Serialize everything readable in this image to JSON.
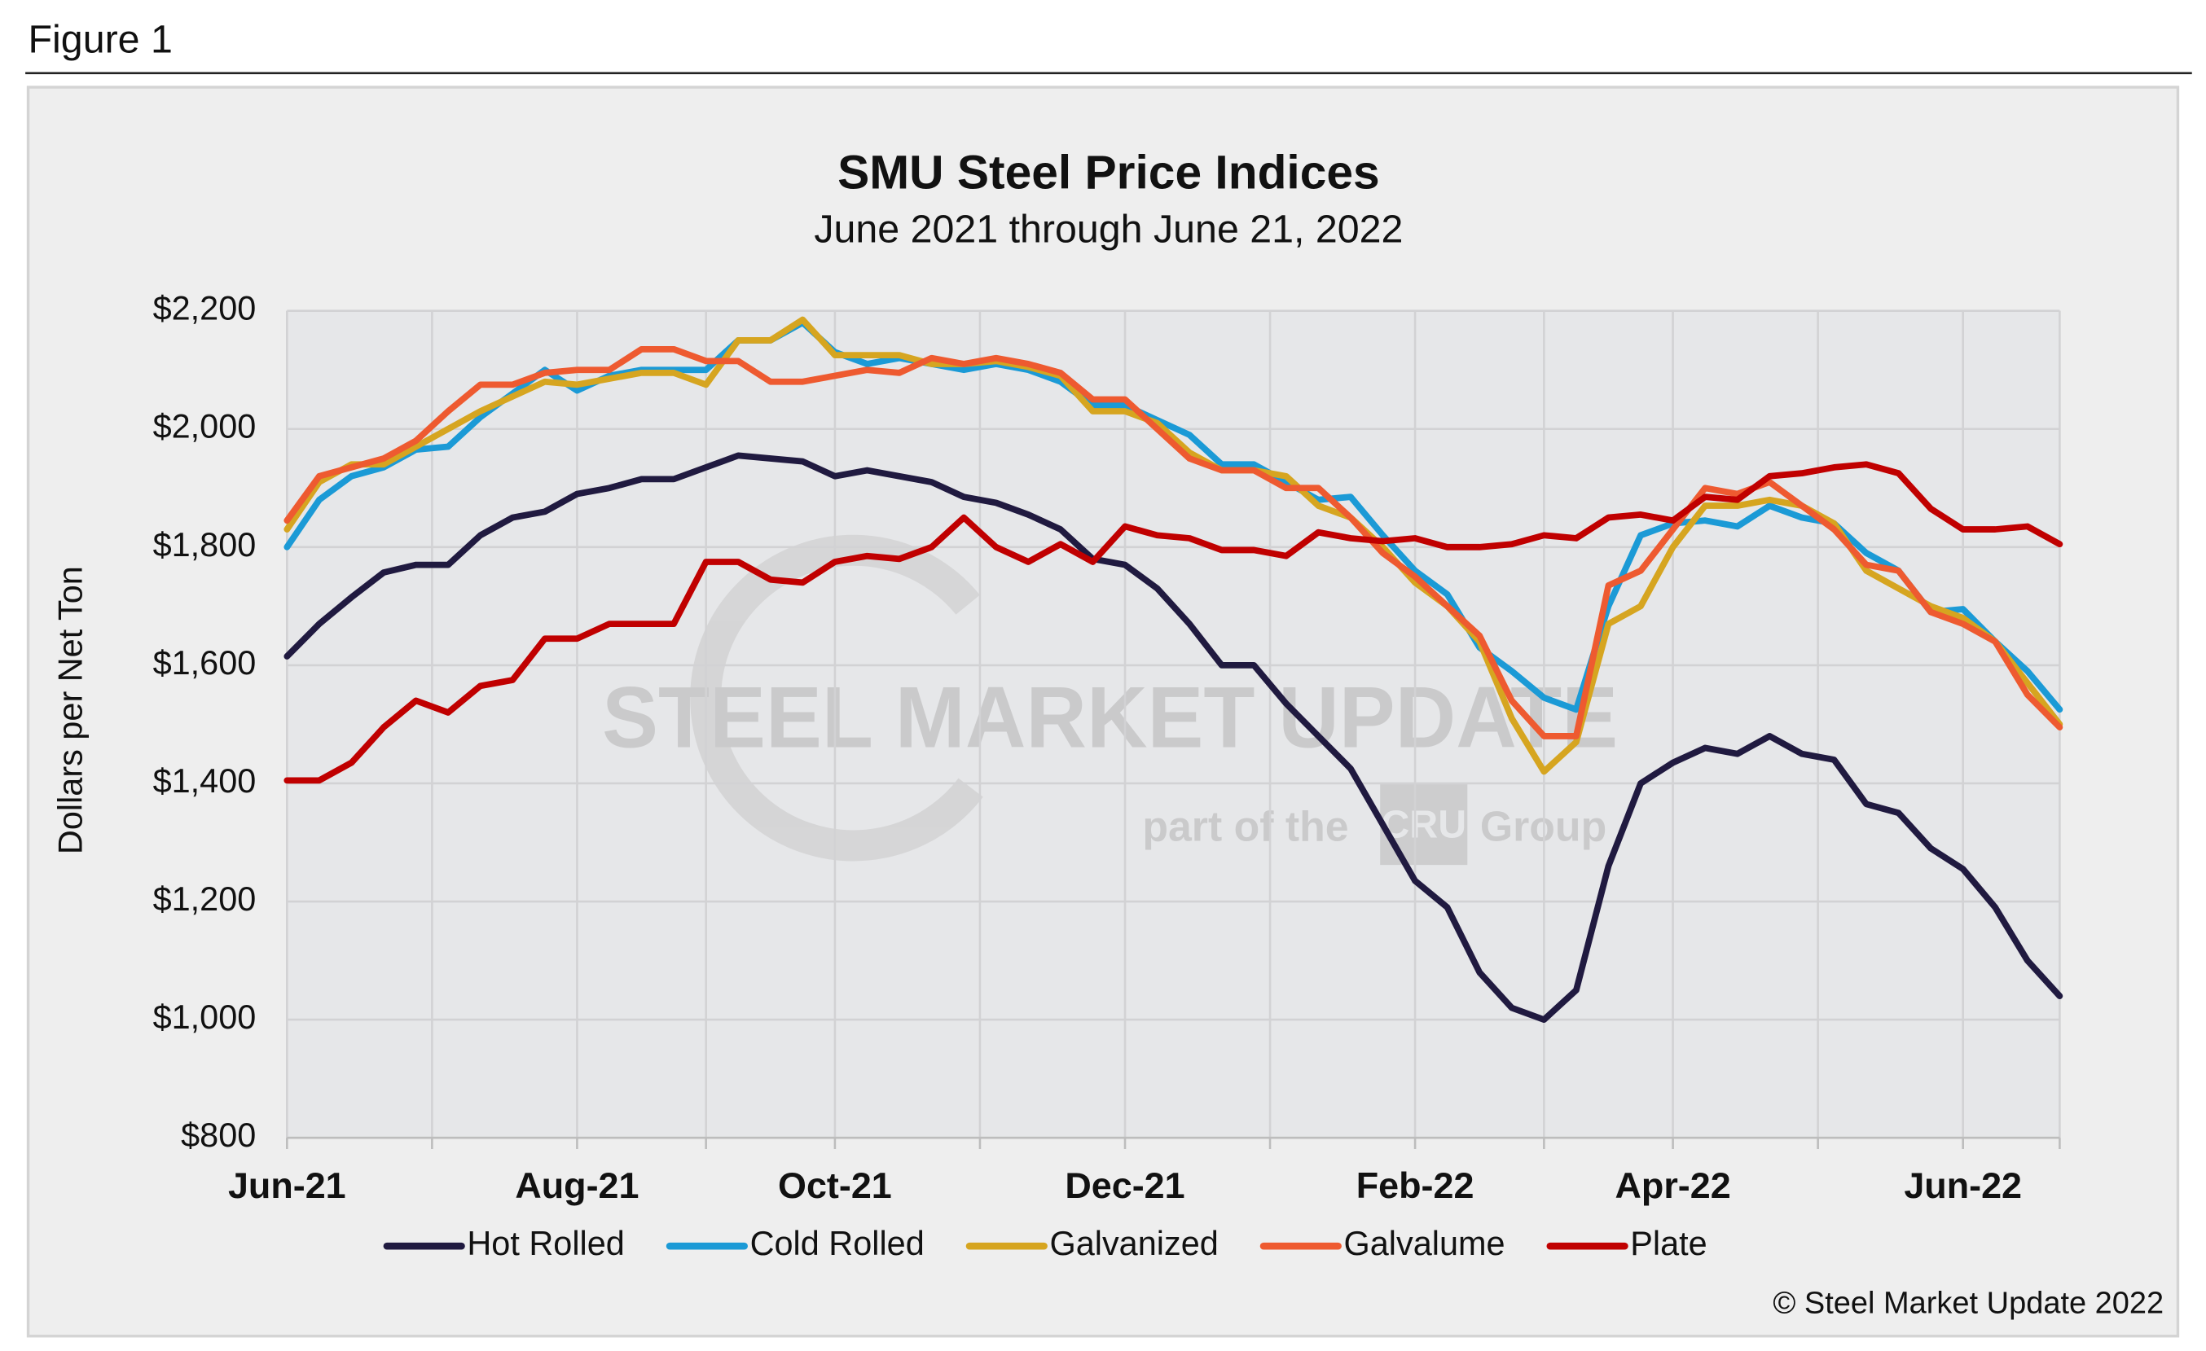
{
  "figure_label": "Figure 1",
  "copyright": "© Steel Market Update 2022",
  "watermark": {
    "brand": "STEEL MARKET UPDATE",
    "tagline": "part of the",
    "logo": "CRU",
    "group": "Group"
  },
  "chart_data": {
    "type": "line",
    "title": "SMU Steel Price Indices",
    "subtitle": "June 2021 through June 21, 2022",
    "y_label": "Dollars per Net Ton",
    "categories": [
      "Jun-21",
      null,
      null,
      null,
      null,
      null,
      null,
      null,
      null,
      "Aug-21",
      null,
      null,
      null,
      null,
      null,
      null,
      null,
      "Oct-21",
      null,
      null,
      null,
      null,
      null,
      null,
      null,
      null,
      "Dec-21",
      null,
      null,
      null,
      null,
      null,
      null,
      null,
      null,
      "Feb-22",
      null,
      null,
      null,
      null,
      null,
      null,
      null,
      "Apr-22",
      null,
      null,
      null,
      null,
      null,
      null,
      null,
      null,
      "Jun-22",
      null,
      null,
      null
    ],
    "ylim": [
      800,
      2200
    ],
    "yticks": [
      {
        "value": 800,
        "label": "$800"
      },
      {
        "value": 1000,
        "label": "$1,000"
      },
      {
        "value": 1200,
        "label": "$1,200"
      },
      {
        "value": 1400,
        "label": "$1,400"
      },
      {
        "value": 1600,
        "label": "$1,600"
      },
      {
        "value": 1800,
        "label": "$1,800"
      },
      {
        "value": 2000,
        "label": "$2,000"
      },
      {
        "value": 2200,
        "label": "$2,200"
      }
    ],
    "grid": true,
    "legend": "bottom",
    "series": [
      {
        "name": "Hot Rolled",
        "color": "#201a40",
        "values": [
          1615,
          1670,
          1715,
          1757,
          1770,
          1770,
          1820,
          1850,
          1860,
          1890,
          1900,
          1915,
          1915,
          1935,
          1955,
          1950,
          1945,
          1920,
          1930,
          1920,
          1910,
          1885,
          1875,
          1855,
          1830,
          1780,
          1770,
          1730,
          1670,
          1600,
          1600,
          1535,
          1480,
          1425,
          1330,
          1235,
          1190,
          1080,
          1020,
          1000,
          1050,
          1260,
          1400,
          1435,
          1460,
          1450,
          1480,
          1450,
          1440,
          1365,
          1350,
          1290,
          1255,
          1190,
          1100,
          1040
        ]
      },
      {
        "name": "Cold Rolled",
        "color": "#1b9ad6",
        "values": [
          1800,
          1880,
          1920,
          1935,
          1965,
          1970,
          2020,
          2060,
          2100,
          2065,
          2090,
          2100,
          2100,
          2100,
          2150,
          2150,
          2180,
          2130,
          2110,
          2120,
          2110,
          2100,
          2110,
          2100,
          2080,
          2040,
          2040,
          2015,
          1990,
          1940,
          1940,
          1910,
          1880,
          1885,
          1820,
          1760,
          1720,
          1630,
          1590,
          1545,
          1525,
          1700,
          1820,
          1840,
          1845,
          1835,
          1870,
          1850,
          1840,
          1790,
          1760,
          1690,
          1695,
          1640,
          1590,
          1525
        ]
      },
      {
        "name": "Galvanized",
        "color": "#d6a520",
        "values": [
          1830,
          1910,
          1940,
          1940,
          1970,
          2000,
          2030,
          2055,
          2080,
          2075,
          2085,
          2095,
          2095,
          2075,
          2150,
          2150,
          2185,
          2125,
          2125,
          2125,
          2110,
          2110,
          2115,
          2105,
          2090,
          2030,
          2030,
          2010,
          1960,
          1930,
          1930,
          1920,
          1870,
          1850,
          1800,
          1740,
          1700,
          1640,
          1510,
          1420,
          1470,
          1670,
          1700,
          1800,
          1870,
          1870,
          1880,
          1870,
          1840,
          1760,
          1730,
          1700,
          1680,
          1640,
          1570,
          1500
        ]
      },
      {
        "name": "Galvalume",
        "color": "#ee5a30",
        "values": [
          1845,
          1920,
          1935,
          1950,
          1980,
          2030,
          2075,
          2075,
          2095,
          2100,
          2100,
          2135,
          2135,
          2115,
          2115,
          2080,
          2080,
          2090,
          2100,
          2095,
          2120,
          2110,
          2120,
          2110,
          2095,
          2050,
          2050,
          2000,
          1950,
          1930,
          1930,
          1900,
          1900,
          1850,
          1790,
          1750,
          1700,
          1650,
          1540,
          1480,
          1480,
          1735,
          1760,
          1830,
          1900,
          1890,
          1910,
          1870,
          1830,
          1770,
          1760,
          1690,
          1670,
          1640,
          1550,
          1495
        ]
      },
      {
        "name": "Plate",
        "color": "#c00000",
        "values": [
          1405,
          1405,
          1435,
          1495,
          1540,
          1520,
          1565,
          1575,
          1645,
          1645,
          1670,
          1670,
          1670,
          1775,
          1775,
          1745,
          1740,
          1775,
          1785,
          1780,
          1800,
          1850,
          1800,
          1775,
          1805,
          1775,
          1835,
          1820,
          1815,
          1795,
          1795,
          1785,
          1825,
          1815,
          1810,
          1815,
          1800,
          1800,
          1805,
          1820,
          1815,
          1850,
          1855,
          1845,
          1885,
          1880,
          1920,
          1925,
          1935,
          1940,
          1925,
          1865,
          1830,
          1830,
          1835,
          1805
        ]
      }
    ]
  }
}
